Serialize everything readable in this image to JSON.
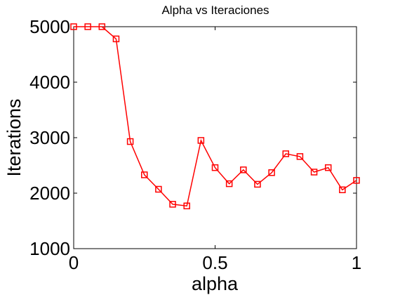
{
  "chart_data": {
    "type": "line",
    "title": "Alpha vs Iteraciones",
    "xlabel": "alpha",
    "ylabel": "Iterations",
    "xlim": [
      0,
      1
    ],
    "ylim": [
      1000,
      5000
    ],
    "x_ticks": [
      0,
      0.5,
      1
    ],
    "x_tick_labels": [
      "0",
      "0.5",
      "1"
    ],
    "y_ticks": [
      1000,
      2000,
      3000,
      4000,
      5000
    ],
    "y_tick_labels": [
      "1000",
      "2000",
      "3000",
      "4000",
      "5000"
    ],
    "grid": false,
    "series": [
      {
        "color": "#ff0000",
        "marker": "square",
        "x": [
          0,
          0.05,
          0.1,
          0.15,
          0.2,
          0.25,
          0.3,
          0.35,
          0.4,
          0.45,
          0.5,
          0.55,
          0.6,
          0.65,
          0.7,
          0.75,
          0.8,
          0.85,
          0.9,
          0.95,
          1.0
        ],
        "y": [
          5000,
          5000,
          5000,
          4780,
          2930,
          2330,
          2070,
          1800,
          1770,
          2950,
          2460,
          2170,
          2420,
          2160,
          2370,
          2710,
          2660,
          2380,
          2460,
          2060,
          2230
        ]
      }
    ]
  }
}
